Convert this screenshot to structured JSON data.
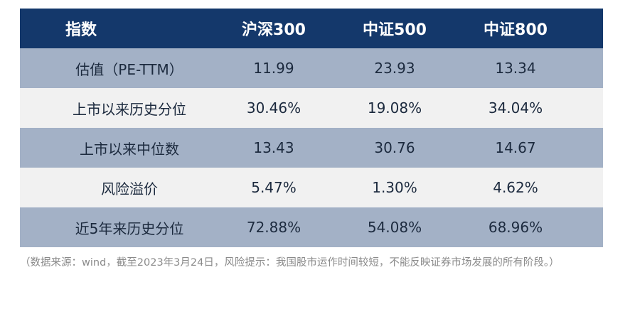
{
  "table": {
    "header": [
      "指数",
      "沪深300",
      "中证500",
      "中证800"
    ],
    "rows": [
      [
        "估值（PE-TTM）",
        "11.99",
        "23.93",
        "13.34"
      ],
      [
        "上市以来历史分位",
        "30.46%",
        "19.08%",
        "34.04%"
      ],
      [
        "上市以来中位数",
        "13.43",
        "30.76",
        "14.67"
      ],
      [
        "风险溢价",
        "5.47%",
        "1.30%",
        "4.62%"
      ],
      [
        "近5年来历史分位",
        "72.88%",
        "54.08%",
        "68.96%"
      ]
    ]
  },
  "note": "（数据来源：wind，截至2023年3月24日，风险提示：我国股市运作时间较短，不能反映证券市场发展的所有阶段。）"
}
